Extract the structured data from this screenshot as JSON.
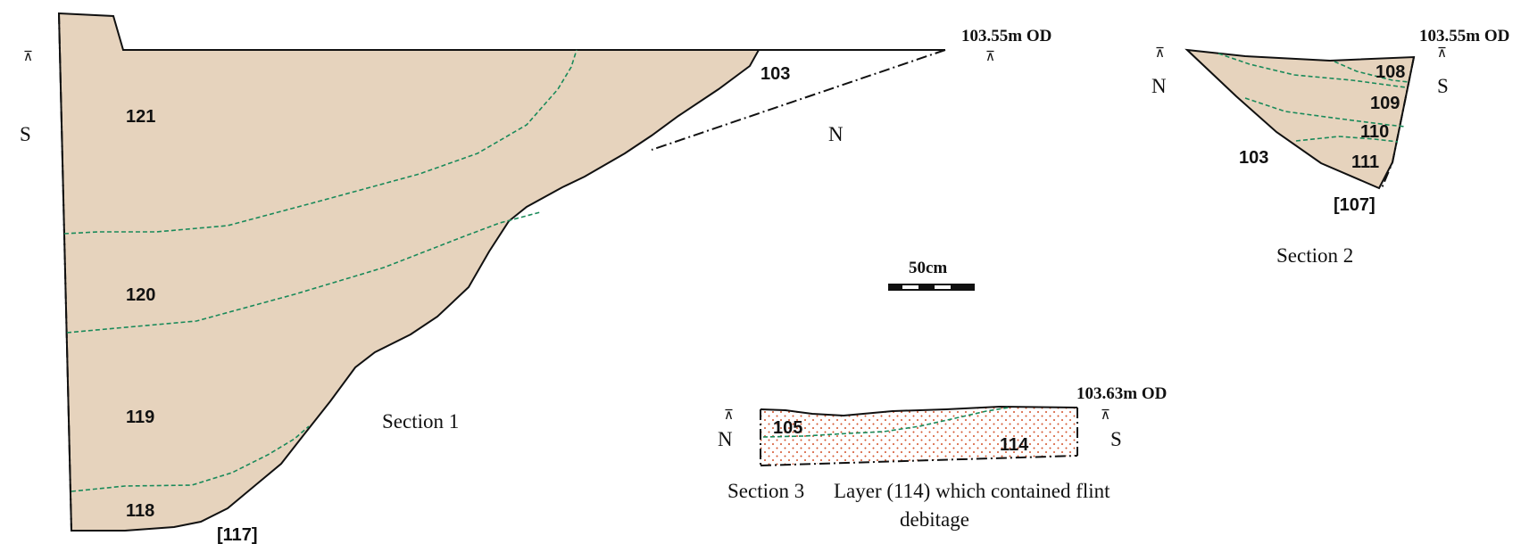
{
  "colors": {
    "soil_fill": "#e6d3bd",
    "layer_boundary": "#1a8a5a",
    "outline": "#111111",
    "dots": "#d4522a"
  },
  "section1": {
    "caption": "Section 1",
    "datum": "103.55m OD",
    "orientation_left": "S",
    "orientation_right": "N",
    "layers": [
      "121",
      "120",
      "119",
      "118"
    ],
    "context_outside": "103",
    "cut_number": "[117]"
  },
  "section2": {
    "caption": "Section 2",
    "datum": "103.55m OD",
    "orientation_left": "N",
    "orientation_right": "S",
    "layers": [
      "108",
      "109",
      "110",
      "111"
    ],
    "context_outside": "103",
    "cut_number": "[107]"
  },
  "section3": {
    "caption": "Section 3",
    "note_line1": "Layer (114) which contained flint",
    "note_line2": "debitage",
    "datum": "103.63m OD",
    "orientation_left": "N",
    "orientation_right": "S",
    "layers": [
      "105",
      "114"
    ]
  },
  "scale_bar": {
    "label": "50cm"
  },
  "icons": {
    "datum": "datum-triangle-icon"
  }
}
